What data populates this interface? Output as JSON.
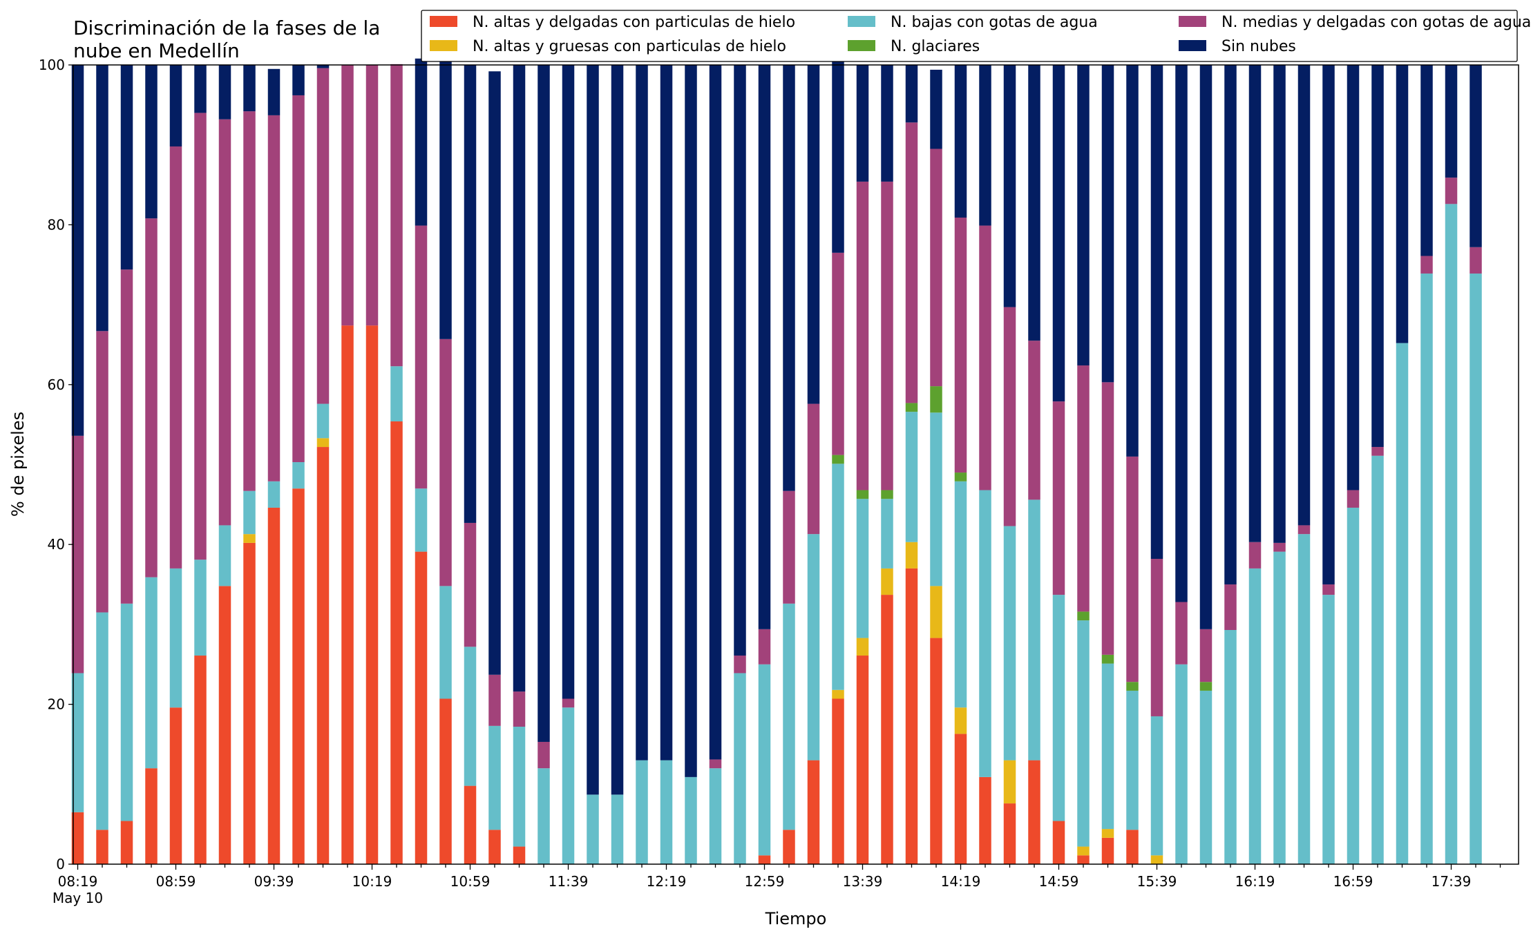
{
  "chart_data": {
    "type": "bar",
    "stacked": true,
    "title_lines": [
      "Discriminación de la fases de la",
      "nube en Medellín"
    ],
    "xlabel": "Tiempo",
    "ylabel": "% de pixeles",
    "ylim": [
      0,
      100
    ],
    "yticks": [
      "0",
      "20",
      "40",
      "60",
      "80",
      "100"
    ],
    "date_label": "May 10",
    "grid": false,
    "legend_position": "top-right",
    "categories": [
      "08:19",
      "08:29",
      "08:39",
      "08:49",
      "08:59",
      "09:09",
      "09:19",
      "09:29",
      "09:39",
      "09:49",
      "09:59",
      "10:09",
      "10:19",
      "10:29",
      "10:39",
      "10:49",
      "10:59",
      "11:09",
      "11:19",
      "11:29",
      "11:39",
      "11:49",
      "11:59",
      "12:09",
      "12:19",
      "12:29",
      "12:39",
      "12:49",
      "12:59",
      "13:09",
      "13:19",
      "13:29",
      "13:39",
      "13:49",
      "13:59",
      "14:09",
      "14:19",
      "14:29",
      "14:39",
      "14:49",
      "14:59",
      "15:09",
      "15:19",
      "15:29",
      "15:39",
      "15:49",
      "15:59",
      "16:09",
      "16:19",
      "16:29",
      "16:39",
      "16:49",
      "16:59",
      "17:09",
      "17:19",
      "17:29",
      "17:39",
      "17:49"
    ],
    "xtick_labels": [
      "08:19",
      "08:59",
      "09:39",
      "10:19",
      "10:59",
      "11:39",
      "12:19",
      "12:59",
      "13:39",
      "14:19",
      "14:59",
      "15:39",
      "16:19",
      "16:59",
      "17:39"
    ],
    "series": [
      {
        "name": "N. altas y delgadas con particulas de hielo",
        "color": "#ee4a2b",
        "values": [
          6.5,
          4.3,
          5.4,
          12,
          19.6,
          26.1,
          34.8,
          40.2,
          44.6,
          47,
          52.2,
          67.4,
          67.4,
          55.4,
          39.1,
          20.7,
          9.8,
          4.3,
          2.2,
          0,
          0,
          0,
          0,
          0,
          0,
          0,
          0,
          0,
          1.1,
          4.3,
          13,
          20.7,
          26.1,
          33.7,
          37,
          28.3,
          16.3,
          10.9,
          7.6,
          13,
          5.4,
          1.1,
          3.3,
          4.3,
          0,
          0,
          0,
          0,
          0,
          0,
          0,
          0,
          0,
          0,
          0,
          0,
          0,
          0
        ]
      },
      {
        "name": "N. altas y gruesas con particulas de hielo",
        "color": "#e8b818",
        "values": [
          0,
          0,
          0,
          0,
          0,
          0,
          0,
          1.1,
          0,
          0,
          1.1,
          0,
          0,
          0,
          0,
          0,
          0,
          0,
          0,
          0,
          0,
          0,
          0,
          0,
          0,
          0,
          0,
          0,
          0,
          0,
          0,
          1.1,
          2.2,
          3.3,
          3.3,
          6.5,
          3.3,
          0,
          5.4,
          0,
          0,
          1.1,
          1.1,
          0,
          1.1,
          0,
          0,
          0,
          0,
          0,
          0,
          0,
          0,
          0,
          0,
          0,
          0,
          0
        ]
      },
      {
        "name": "N. bajas con gotas de agua",
        "color": "#65bec9",
        "values": [
          17.4,
          27.2,
          27.2,
          23.9,
          17.4,
          12,
          7.6,
          5.4,
          3.3,
          3.3,
          4.3,
          0,
          0,
          6.9,
          7.9,
          14.1,
          17.4,
          13,
          15,
          12,
          19.6,
          8.7,
          8.7,
          13,
          13,
          10.9,
          12,
          23.9,
          23.9,
          28.3,
          28.3,
          28.3,
          17.4,
          8.7,
          16.3,
          21.7,
          28.3,
          35.9,
          29.3,
          32.6,
          28.3,
          28.3,
          20.7,
          17.4,
          17.4,
          25,
          21.7,
          29.3,
          37,
          39.1,
          41.3,
          33.7,
          44.6,
          51.1,
          65.2,
          73.9,
          82.6,
          73.9
        ]
      },
      {
        "name": "N. glaciares",
        "color": "#5da12e",
        "values": [
          0,
          0,
          0,
          0,
          0,
          0,
          0,
          0,
          0,
          0,
          0,
          0,
          0,
          0,
          0,
          0,
          0,
          0,
          0,
          0,
          0,
          0,
          0,
          0,
          0,
          0,
          0,
          0,
          0,
          0,
          0,
          1.1,
          1.1,
          1.1,
          1.1,
          3.3,
          1.1,
          0,
          0,
          0,
          0,
          1.1,
          1.1,
          1.1,
          0,
          0,
          1.1,
          0,
          0,
          0,
          0,
          0,
          0,
          0,
          0,
          0,
          0,
          0
        ]
      },
      {
        "name": "N. medias y delgadas con gotas de agua",
        "color": "#a2427a",
        "values": [
          29.7,
          35.2,
          41.8,
          44.9,
          52.8,
          55.9,
          50.8,
          47.5,
          45.8,
          45.9,
          42,
          32.6,
          32.6,
          37.8,
          32.9,
          30.9,
          15.5,
          6.4,
          4.4,
          3.3,
          1.1,
          0,
          0,
          0,
          0,
          0,
          1.1,
          2.2,
          4.4,
          14.1,
          16.3,
          25.3,
          38.6,
          38.6,
          35.1,
          29.7,
          31.9,
          33.1,
          27.4,
          19.9,
          24.2,
          30.8,
          34.1,
          28.2,
          19.7,
          7.8,
          6.6,
          5.7,
          3.3,
          1.1,
          1.1,
          1.3,
          2.2,
          1.1,
          0,
          2.2,
          3.3,
          3.3
        ]
      },
      {
        "name": "Sin nubes",
        "color": "#041e62",
        "values": [
          46.4,
          33.3,
          25.6,
          19.2,
          10.2,
          6,
          6.8,
          5.8,
          5.8,
          3.8,
          0.4,
          0,
          0,
          0,
          20.9,
          35.2,
          57.3,
          75.5,
          78.4,
          84.7,
          79.3,
          91.3,
          91.3,
          87,
          87,
          89.1,
          86.9,
          73.9,
          70.6,
          53.3,
          42.4,
          24.3,
          14.6,
          14.6,
          7.2,
          9.9,
          19.1,
          20.1,
          30.3,
          34.5,
          42.1,
          37.6,
          39.7,
          49,
          61.8,
          67.2,
          70.6,
          65,
          59.7,
          59.8,
          57.6,
          65,
          53.2,
          47.8,
          34.8,
          23.9,
          14.1,
          22.8
        ]
      }
    ]
  }
}
